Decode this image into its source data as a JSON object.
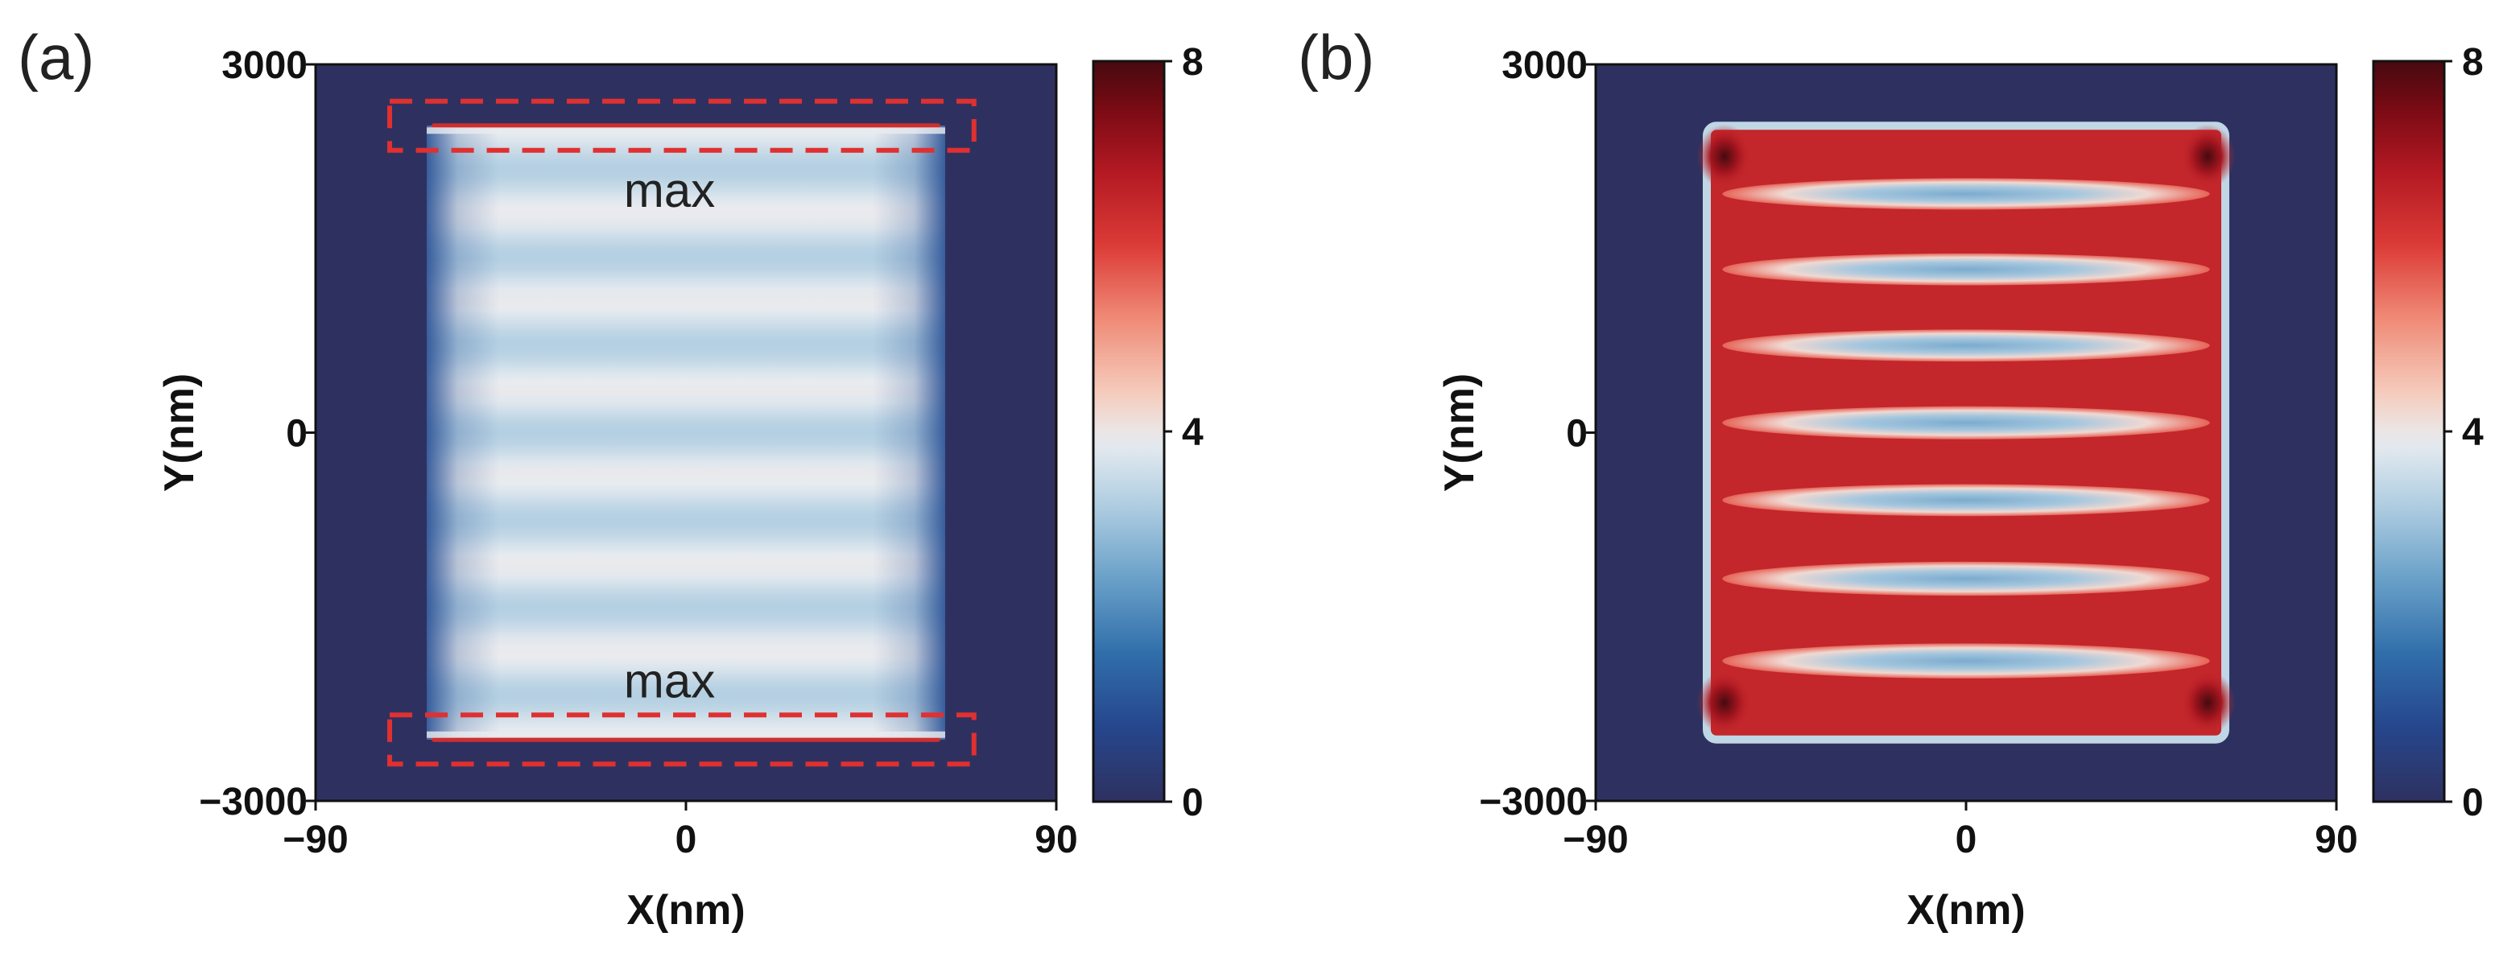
{
  "chart_data": [
    {
      "type": "heatmap",
      "panel_label": "(a)",
      "xlabel": "X(nm)",
      "ylabel": "Y(nm)",
      "xlim": [
        -90,
        90
      ],
      "ylim": [
        -3000,
        3000
      ],
      "x_ticks": [
        "−90",
        "0",
        "90"
      ],
      "y_ticks": [
        "3000",
        "0",
        "−3000"
      ],
      "colorbar": {
        "range": [
          0,
          8
        ],
        "ticks": [
          "8",
          "4",
          "0"
        ]
      },
      "rod_x_extent": [
        -63,
        63
      ],
      "rod_y_extent": [
        -2500,
        2500
      ],
      "interior_level": 3.6,
      "fringe_count": 14,
      "edge_maxima_y": [
        2500,
        -2500
      ],
      "annotations": [
        "max",
        "max"
      ],
      "highlight_boxes_y": [
        [
          2300,
          2700
        ],
        [
          -2700,
          -2300
        ]
      ],
      "highlight_box_x": [
        -72,
        70
      ],
      "highlight_box_color": "#e03030",
      "background_color": "#2e3160"
    },
    {
      "type": "heatmap",
      "panel_label": "(b)",
      "xlabel": "X(nm)",
      "ylabel": "Y(nm)",
      "xlim": [
        -90,
        90
      ],
      "ylim": [
        -3000,
        3000
      ],
      "x_ticks": [
        "−90",
        "0",
        "90"
      ],
      "y_ticks": [
        "3000",
        "0",
        "−3000"
      ],
      "colorbar": {
        "range": [
          0,
          8
        ],
        "ticks": [
          "8",
          "4",
          "0"
        ]
      },
      "rod_x_extent": [
        -63,
        63
      ],
      "rod_y_extent": [
        -2500,
        2500
      ],
      "red_band_y": [
        2250,
        1640,
        1020,
        400,
        -240,
        -860,
        -1520,
        -2200
      ],
      "red_band_level": 6.5,
      "blue_gap_level": 3.0,
      "corner_level": 8,
      "background_color": "#2e3160"
    }
  ]
}
